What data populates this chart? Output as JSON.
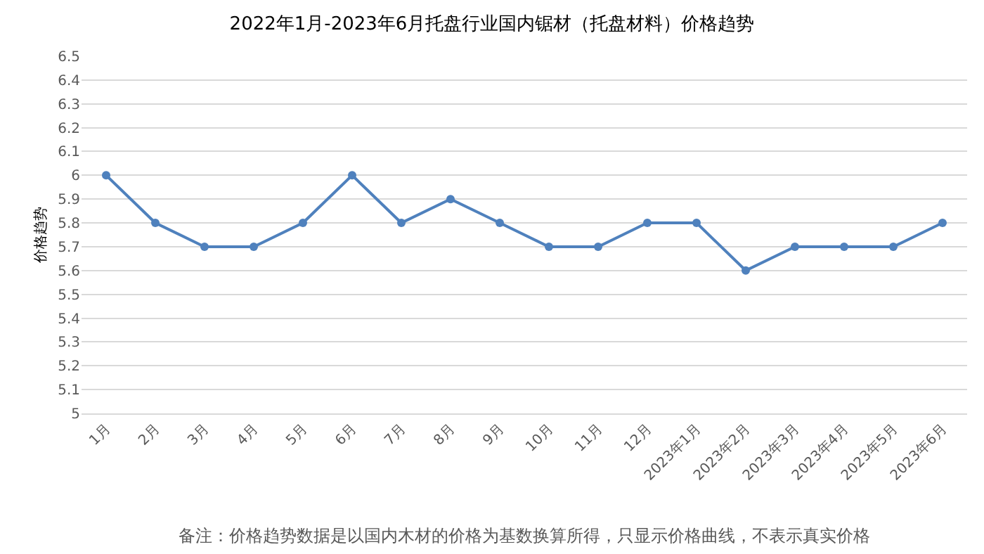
{
  "chart_data": {
    "type": "line",
    "title": "2022年1月-2023年6月托盘行业国内锯材（托盘材料）价格趋势",
    "ylabel": "价格趋势",
    "categories": [
      "1月",
      "2月",
      "3月",
      "4月",
      "5月",
      "6月",
      "7月",
      "8月",
      "9月",
      "10月",
      "11月",
      "12月",
      "2023年1月",
      "2023年2月",
      "2023年3月",
      "2023年4月",
      "2023年5月",
      "2023年6月"
    ],
    "series": [
      {
        "color": "#4f81bd",
        "values": [
          6.0,
          5.8,
          5.7,
          5.7,
          5.8,
          6.0,
          5.8,
          5.9,
          5.8,
          5.7,
          5.7,
          5.8,
          5.8,
          5.6,
          5.7,
          5.7,
          5.7,
          5.8
        ]
      }
    ],
    "ylim": [
      5,
      6.5
    ],
    "yticks": [
      5,
      5.1,
      5.2,
      5.3,
      5.4,
      5.5,
      5.6,
      5.7,
      5.8,
      5.9,
      6,
      6.1,
      6.2,
      6.3,
      6.4,
      6.5
    ],
    "grid": "y",
    "marker": "circle",
    "line_style": "solid",
    "legend": false,
    "annotations": [
      "备注：价格趋势数据是以国内木材的价格为基数换算所得，只显示价格曲线，不表示真实价格"
    ]
  }
}
